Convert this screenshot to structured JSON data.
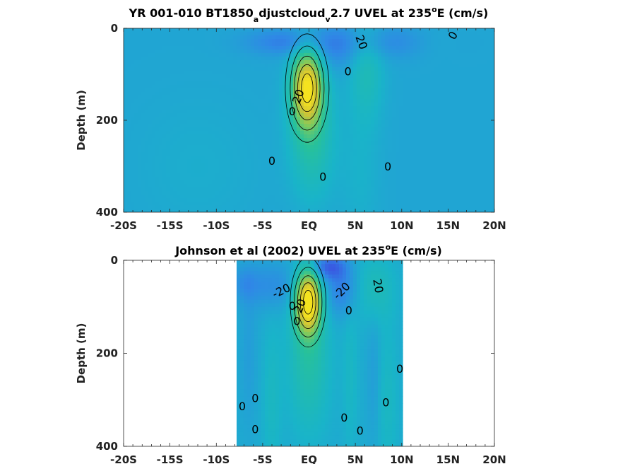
{
  "chart_data": [
    {
      "type": "heatmap",
      "title": {
        "pre": "YR 001-010 BT1850",
        "sub1": "a",
        "mid": "djustcloud",
        "sub2": "v",
        "post": "2.7 UVEL at 235",
        "sup": "o",
        "end": "E (cm/s)"
      },
      "ylabel": "Depth (m)",
      "xlim": [
        -20,
        20
      ],
      "ylim": [
        0,
        400
      ],
      "y_reversed": true,
      "x_ticks": [
        {
          "v": -20,
          "label": "-20S"
        },
        {
          "v": -15,
          "label": "-15S"
        },
        {
          "v": -10,
          "label": "-10S"
        },
        {
          "v": -5,
          "label": "-5S"
        },
        {
          "v": 0,
          "label": "EQ"
        },
        {
          "v": 5,
          "label": "5N"
        },
        {
          "v": 10,
          "label": "10N"
        },
        {
          "v": 15,
          "label": "15N"
        },
        {
          "v": 20,
          "label": "20N"
        }
      ],
      "y_ticks": [
        {
          "v": 0,
          "label": "0"
        },
        {
          "v": 200,
          "label": "200"
        },
        {
          "v": 400,
          "label": "400"
        }
      ],
      "data_extent_x": [
        -20,
        20
      ],
      "colormap": [
        "#3b4fe0",
        "#2f88e6",
        "#19b4c9",
        "#27c19a",
        "#7cca5e",
        "#cfc336",
        "#f5e21f"
      ],
      "background_value": -4,
      "features": [
        {
          "x": -0.2,
          "y": 130,
          "sx": 1.1,
          "sy": 55,
          "amp": 88
        },
        {
          "x": 0.3,
          "y": 230,
          "sx": 1.6,
          "sy": 90,
          "amp": 25
        },
        {
          "x": 6.2,
          "y": 90,
          "sx": 1.3,
          "sy": 80,
          "amp": 16
        },
        {
          "x": -2.5,
          "y": 30,
          "sx": 3.0,
          "sy": 20,
          "amp": -18
        },
        {
          "x": 3.0,
          "y": 40,
          "sx": 1.8,
          "sy": 35,
          "amp": -14
        },
        {
          "x": 9.5,
          "y": 30,
          "sx": 3.5,
          "sy": 25,
          "amp": -13
        },
        {
          "x": 13.0,
          "y": 30,
          "sx": 2.0,
          "sy": 25,
          "amp": 6
        },
        {
          "x": -12.0,
          "y": 300,
          "sx": 5.0,
          "sy": 110,
          "amp": 4
        },
        {
          "x": 5.5,
          "y": 320,
          "sx": 1.5,
          "sy": 100,
          "amp": 6
        }
      ],
      "contour_labels": [
        {
          "x": 15.5,
          "y": 15,
          "text": "0",
          "rot": -60
        },
        {
          "x": 5.7,
          "y": 30,
          "text": "20",
          "rot": 70
        },
        {
          "x": 4.2,
          "y": 93,
          "text": "0",
          "rot": 0
        },
        {
          "x": -1.2,
          "y": 148,
          "text": "20",
          "rot": -70
        },
        {
          "x": -1.8,
          "y": 180,
          "text": "0",
          "rot": 0
        },
        {
          "x": -4.0,
          "y": 288,
          "text": "0",
          "rot": 0
        },
        {
          "x": 1.5,
          "y": 322,
          "text": "0",
          "rot": 0
        },
        {
          "x": 8.5,
          "y": 300,
          "text": "0",
          "rot": 0
        }
      ]
    },
    {
      "type": "heatmap",
      "title": {
        "pre": "Johnson et al (2002) UVEL at 235",
        "sup": "o",
        "end": "E (cm/s)"
      },
      "ylabel": "Depth (m)",
      "xlim": [
        -20,
        20
      ],
      "ylim": [
        0,
        400
      ],
      "y_reversed": true,
      "x_ticks": [
        {
          "v": -20,
          "label": "-20S"
        },
        {
          "v": -15,
          "label": "-15S"
        },
        {
          "v": -10,
          "label": "-10S"
        },
        {
          "v": -5,
          "label": "-5S"
        },
        {
          "v": 0,
          "label": "EQ"
        },
        {
          "v": 5,
          "label": "5N"
        },
        {
          "v": 10,
          "label": "10N"
        },
        {
          "v": 15,
          "label": "15N"
        },
        {
          "v": 20,
          "label": "20N"
        }
      ],
      "y_ticks": [
        {
          "v": 0,
          "label": "0"
        },
        {
          "v": 200,
          "label": "200"
        },
        {
          "v": 400,
          "label": "400"
        }
      ],
      "data_extent_x": [
        -7.8,
        10
      ],
      "colormap": [
        "#3b4fe0",
        "#2f88e6",
        "#19b4c9",
        "#27c19a",
        "#7cca5e",
        "#cfc336",
        "#f5e21f"
      ],
      "background_value": -2,
      "features": [
        {
          "x": -0.1,
          "y": 90,
          "sx": 0.9,
          "sy": 45,
          "amp": 95
        },
        {
          "x": 0.0,
          "y": 200,
          "sx": 1.5,
          "sy": 110,
          "amp": 22
        },
        {
          "x": 7.0,
          "y": 60,
          "sx": 1.5,
          "sy": 50,
          "amp": 14
        },
        {
          "x": 2.0,
          "y": 15,
          "sx": 1.3,
          "sy": 18,
          "amp": -30
        },
        {
          "x": 3.5,
          "y": 60,
          "sx": 1.3,
          "sy": 40,
          "amp": -20
        },
        {
          "x": -4.0,
          "y": 55,
          "sx": 2.0,
          "sy": 35,
          "amp": -14
        },
        {
          "x": -7.0,
          "y": 50,
          "sx": 1.0,
          "sy": 25,
          "amp": -10
        },
        {
          "x": -4.0,
          "y": 300,
          "sx": 0.7,
          "sy": 120,
          "amp": 9
        },
        {
          "x": 8.5,
          "y": 300,
          "sx": 0.8,
          "sy": 120,
          "amp": 9
        },
        {
          "x": 4.5,
          "y": 250,
          "sx": 0.6,
          "sy": 120,
          "amp": 8
        },
        {
          "x": -6.5,
          "y": 200,
          "sx": 0.6,
          "sy": 110,
          "amp": -6
        },
        {
          "x": 7.0,
          "y": 250,
          "sx": 0.5,
          "sy": 100,
          "amp": -6
        }
      ],
      "contour_labels": [
        {
          "x": -3.0,
          "y": 65,
          "text": "-20",
          "rot": -25
        },
        {
          "x": 3.5,
          "y": 65,
          "text": "-20",
          "rot": -45
        },
        {
          "x": 7.5,
          "y": 55,
          "text": "20",
          "rot": 80
        },
        {
          "x": -1.0,
          "y": 98,
          "text": "20",
          "rot": -70
        },
        {
          "x": -1.8,
          "y": 97,
          "text": "0",
          "rot": 0
        },
        {
          "x": 4.3,
          "y": 107,
          "text": "0",
          "rot": 0
        },
        {
          "x": -1.3,
          "y": 130,
          "text": "0",
          "rot": 0
        },
        {
          "x": 9.8,
          "y": 233,
          "text": "0",
          "rot": 0
        },
        {
          "x": -7.2,
          "y": 313,
          "text": "0",
          "rot": 0
        },
        {
          "x": -5.8,
          "y": 296,
          "text": "0",
          "rot": 0
        },
        {
          "x": 8.3,
          "y": 305,
          "text": "0",
          "rot": 0
        },
        {
          "x": 3.8,
          "y": 338,
          "text": "0",
          "rot": 0
        },
        {
          "x": -5.8,
          "y": 363,
          "text": "0",
          "rot": 0
        },
        {
          "x": 5.5,
          "y": 366,
          "text": "0",
          "rot": 0
        }
      ]
    }
  ]
}
